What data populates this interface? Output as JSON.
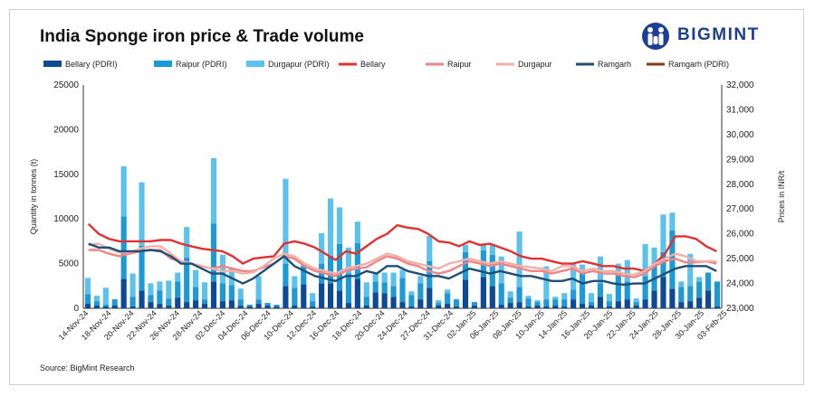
{
  "header": {
    "title": "India Sponge iron price & Trade volume",
    "brand": "BIGMINT"
  },
  "footer": {
    "source": "Source: BigMint Research"
  },
  "colors": {
    "bellary_bar": "#0d4a93",
    "raipur_bar": "#1c9ad6",
    "durgapur_bar": "#5bc3eb",
    "bellary_line": "#e03232",
    "raipur_line": "#ef8585",
    "durgapur_line": "#f2b0a6",
    "ramgarh_line": "#1f4e79",
    "ramgarh_pdri": "#8b3a0e",
    "brand": "#1b3f94"
  },
  "chart_data": {
    "type": "bar+line",
    "ylabel": "Quantity in tonnes (t)",
    "y2label": "Prices in INR/t",
    "ylim": [
      0,
      25000
    ],
    "y2lim": [
      23000,
      32000
    ],
    "yticks": [
      "0",
      "5000",
      "10000",
      "15000",
      "20000",
      "25000"
    ],
    "y2ticks": [
      "23,000",
      "24,000",
      "25,000",
      "26,000",
      "27,000",
      "28,000",
      "29,000",
      "30,000",
      "31,000",
      "32,000"
    ],
    "x_tick_labels": [
      "14-Nov-24",
      "18-Nov-24",
      "20-Nov-24",
      "22-Nov-24",
      "26-Nov-24",
      "28-Nov-24",
      "02-Dec-24",
      "04-Dec-24",
      "06-Dec-24",
      "10-Dec-24",
      "12-Dec-24",
      "16-Dec-24",
      "18-Dec-24",
      "20-Dec-24",
      "24-Dec-24",
      "27-Dec-24",
      "31-Dec-24",
      "02-Jan-25",
      "06-Jan-25",
      "08-Jan-25",
      "10-Jan-25",
      "14-Jan-25",
      "16-Jan-25",
      "20-Jan-25",
      "22-Jan-25",
      "24-Jan-25",
      "28-Jan-25",
      "30-Jan-25",
      "03-Feb-25"
    ],
    "legend": [
      {
        "name": "Bellary (PDRI)",
        "kind": "bar",
        "color": "#0d4a93"
      },
      {
        "name": "Raipur (PDRI)",
        "kind": "bar",
        "color": "#1c9ad6"
      },
      {
        "name": "Durgapur (PDRI)",
        "kind": "bar",
        "color": "#5bc3eb"
      },
      {
        "name": "Bellary",
        "kind": "line",
        "color": "#e03232"
      },
      {
        "name": "Raipur",
        "kind": "line",
        "color": "#ef8585"
      },
      {
        "name": "Durgapur",
        "kind": "line",
        "color": "#f2b0a6"
      },
      {
        "name": "Ramgarh",
        "kind": "line",
        "color": "#1f4e79"
      },
      {
        "name": "Ramgarh (PDRI)",
        "kind": "line",
        "color": "#8b3a0e"
      }
    ],
    "bar_series": [
      {
        "name": "Bellary (PDRI)",
        "values": [
          500,
          300,
          200,
          300,
          3300,
          200,
          2000,
          700,
          500,
          300,
          1200,
          700,
          900,
          500,
          3000,
          800,
          900,
          300,
          200,
          500,
          300,
          200,
          2500,
          300,
          2700,
          200,
          2800,
          2800,
          2000,
          600,
          3300,
          300,
          1800,
          1700,
          1300,
          700,
          200,
          1000,
          2300,
          300,
          500,
          200,
          3200,
          300,
          3500,
          2500,
          400,
          600,
          700,
          200,
          300,
          200,
          300,
          200,
          1000,
          500,
          300,
          1300,
          200,
          800,
          1000,
          300,
          1000,
          2000,
          3500,
          2200,
          700,
          800,
          1200,
          2000,
          200
        ]
      },
      {
        "name": "Raipur (PDRI)",
        "values": [
          1100,
          500,
          200,
          700,
          7000,
          1100,
          5000,
          800,
          1500,
          800,
          1800,
          5000,
          1500,
          500,
          6500,
          2000,
          1700,
          700,
          200,
          500,
          300,
          200,
          2500,
          2000,
          2000,
          600,
          2200,
          3100,
          5200,
          3300,
          4000,
          1000,
          1200,
          1200,
          1200,
          2700,
          1300,
          1800,
          3000,
          300,
          1200,
          800,
          3100,
          400,
          3000,
          3500,
          2400,
          600,
          1700,
          900,
          400,
          800,
          700,
          800,
          1100,
          3400,
          400,
          1500,
          600,
          3100,
          2000,
          400,
          2600,
          2900,
          2800,
          6500,
          1700,
          1700,
          1800,
          2000,
          2800
        ]
      },
      {
        "name": "Durgapur (PDRI)",
        "values": [
          1800,
          600,
          1900,
          0,
          5600,
          2600,
          7100,
          1300,
          1000,
          2000,
          1000,
          3400,
          1900,
          1900,
          7300,
          3200,
          1800,
          1200,
          0,
          2600,
          0,
          0,
          9500,
          1300,
          300,
          900,
          3400,
          6400,
          4100,
          2900,
          2400,
          1600,
          1000,
          1100,
          1500,
          900,
          400,
          800,
          2800,
          300,
          400,
          0,
          800,
          0,
          700,
          1200,
          3000,
          700,
          6200,
          300,
          200,
          3700,
          300,
          700,
          3000,
          1000,
          1000,
          3000,
          800,
          1100,
          2400,
          400,
          3600,
          1900,
          4200,
          2000,
          600,
          3600,
          500,
          0,
          0
        ]
      }
    ],
    "line_series": [
      {
        "name": "Bellary",
        "values": [
          26400,
          26000,
          25800,
          25700,
          25700,
          25700,
          25700,
          25750,
          25750,
          25600,
          25500,
          25400,
          25350,
          25300,
          25100,
          24800,
          25000,
          25050,
          25100,
          25600,
          25700,
          25600,
          25450,
          25200,
          24950,
          25300,
          25200,
          25500,
          25800,
          26000,
          26350,
          26250,
          26200,
          26000,
          25700,
          25650,
          25500,
          25700,
          25550,
          25600,
          25450,
          25300,
          25100,
          25000,
          25000,
          24900,
          24800,
          24800,
          24900,
          24800,
          24700,
          24700,
          24600,
          24600,
          24500,
          24800,
          25200,
          25900,
          25900,
          25800,
          25500,
          25300,
          null,
          null,
          null,
          null,
          null,
          null,
          null,
          null,
          null
        ]
      },
      {
        "name": "Raipur",
        "values": [
          25350,
          25350,
          25200,
          25100,
          25200,
          25300,
          25350,
          25350,
          25000,
          24900,
          24800,
          24700,
          24600,
          24700,
          24600,
          24500,
          24500,
          24650,
          24800,
          25100,
          25000,
          24700,
          24500,
          24400,
          24300,
          24500,
          24600,
          24650,
          24900,
          25100,
          25000,
          24800,
          24700,
          24500,
          24400,
          24500,
          24700,
          24900,
          24800,
          24700,
          24800,
          24700,
          24600,
          24500,
          24500,
          24400,
          24500,
          24600,
          24400,
          24500,
          24400,
          24400,
          24300,
          24250,
          24400,
          24700,
          24900,
          25000,
          24850,
          24850,
          24900,
          24800,
          null,
          null,
          null,
          null,
          null,
          null,
          null,
          null,
          null
        ]
      },
      {
        "name": "Durgapur",
        "values": [
          25550,
          25600,
          25400,
          25250,
          25250,
          25400,
          25500,
          25500,
          25200,
          24900,
          24800,
          24700,
          24600,
          24500,
          24500,
          24400,
          24450,
          24700,
          25000,
          25200,
          25100,
          24800,
          24600,
          24500,
          24400,
          24600,
          24700,
          24800,
          25000,
          25200,
          25100,
          24900,
          24800,
          24700,
          24600,
          24800,
          24900,
          25000,
          24900,
          24800,
          24900,
          24800,
          24700,
          24650,
          24600,
          24500,
          24700,
          24700,
          24500,
          24600,
          24500,
          24500,
          24400,
          24350,
          24500,
          24800,
          25000,
          25200,
          25100,
          24900,
          24900,
          24900,
          null,
          null,
          null,
          null,
          null,
          null,
          null,
          null,
          null
        ]
      },
      {
        "name": "Ramgarh",
        "values": [
          25600,
          25450,
          25450,
          25300,
          25300,
          25300,
          25350,
          25300,
          25100,
          24800,
          24800,
          24600,
          24400,
          24400,
          24200,
          24000,
          24200,
          24500,
          24800,
          25100,
          24700,
          24500,
          24300,
          24200,
          24100,
          24300,
          24300,
          24500,
          24400,
          24700,
          24700,
          24500,
          24400,
          24300,
          24300,
          24200,
          24400,
          24600,
          24500,
          24400,
          24500,
          24400,
          24300,
          24300,
          24200,
          24100,
          24100,
          24200,
          24000,
          24100,
          24100,
          24000,
          23950,
          24000,
          24000,
          24200,
          24400,
          24600,
          24700,
          24700,
          24700,
          24500,
          null,
          null,
          null,
          null,
          null,
          null,
          null,
          null,
          null
        ]
      },
      {
        "name": "Ramgarh (PDRI)",
        "values": []
      }
    ]
  }
}
